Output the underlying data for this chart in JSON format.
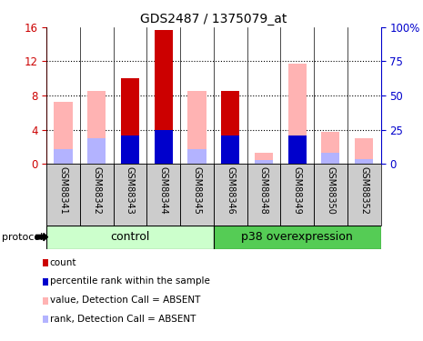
{
  "title": "GDS2487 / 1375079_at",
  "samples": [
    "GSM88341",
    "GSM88342",
    "GSM88343",
    "GSM88344",
    "GSM88345",
    "GSM88346",
    "GSM88348",
    "GSM88349",
    "GSM88350",
    "GSM88352"
  ],
  "control_count": 5,
  "p38_count": 5,
  "group_labels": [
    "control",
    "p38 overexpression"
  ],
  "ylim_left": [
    0,
    16
  ],
  "ylim_right": [
    0,
    100
  ],
  "yticks_left": [
    0,
    4,
    8,
    12,
    16
  ],
  "yticks_right": [
    0,
    25,
    50,
    75,
    100
  ],
  "ytick_labels_left": [
    "0",
    "4",
    "8",
    "12",
    "16"
  ],
  "ytick_labels_right": [
    "0",
    "25",
    "50",
    "75",
    "100%"
  ],
  "red_bars": [
    0,
    0,
    10.0,
    15.7,
    0,
    8.5,
    0,
    0,
    0,
    0
  ],
  "blue_bars": [
    0,
    0,
    3.3,
    3.9,
    0,
    3.3,
    0,
    3.3,
    0,
    0
  ],
  "pink_bars": [
    7.3,
    8.5,
    3.3,
    0,
    8.5,
    3.3,
    1.3,
    11.7,
    3.7,
    3.0
  ],
  "lightblue_bars": [
    1.7,
    3.0,
    0,
    0,
    1.7,
    0,
    0.4,
    3.3,
    1.3,
    0.5
  ],
  "bar_width": 0.55,
  "colors": {
    "red": "#cc0000",
    "blue": "#0000cc",
    "pink": "#ffb3b3",
    "lightblue": "#b3b3ff",
    "control_bg": "#ccffcc",
    "p38_bg": "#55cc55",
    "label_area_bg": "#cccccc",
    "grid_bg": "#ffffff",
    "separator": "#888888"
  },
  "legend_items": [
    {
      "color": "#cc0000",
      "label": "count"
    },
    {
      "color": "#0000cc",
      "label": "percentile rank within the sample"
    },
    {
      "color": "#ffb3b3",
      "label": "value, Detection Call = ABSENT"
    },
    {
      "color": "#b3b3ff",
      "label": "rank, Detection Call = ABSENT"
    }
  ]
}
